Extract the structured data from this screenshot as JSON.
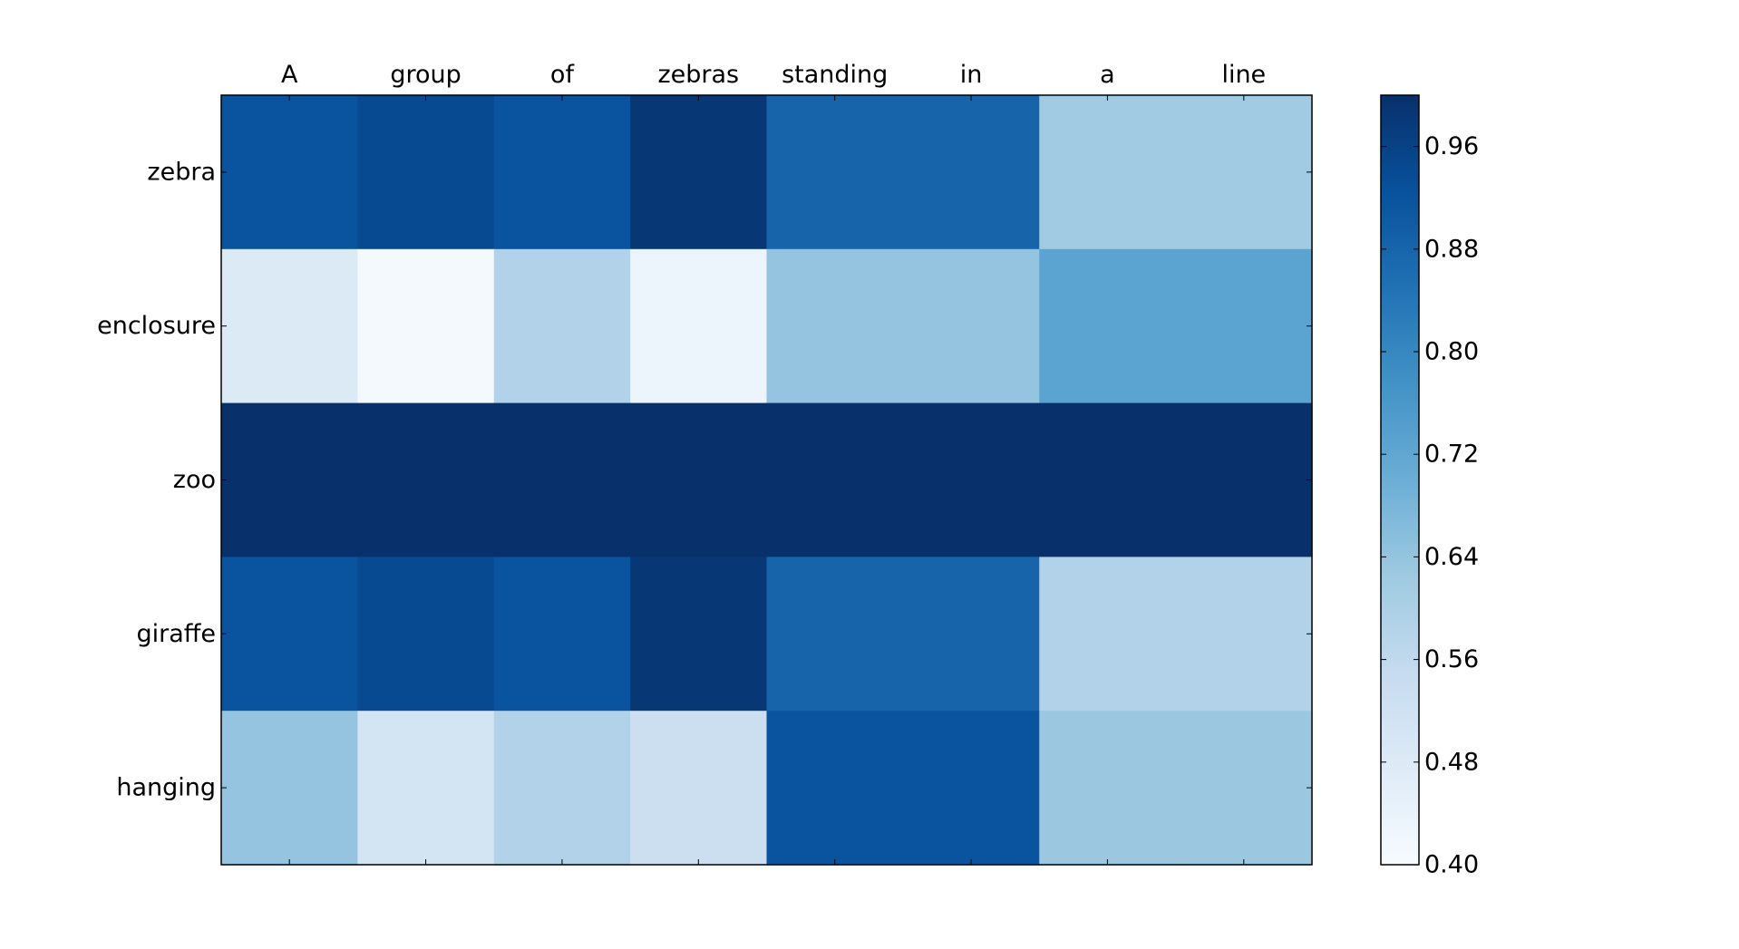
{
  "chart_data": {
    "type": "heatmap",
    "title": "",
    "xlabel": "",
    "ylabel": "",
    "x_labels": [
      "A",
      "group",
      "of",
      "zebras",
      "standing",
      "in",
      "a",
      "line"
    ],
    "y_labels": [
      "zebra",
      "enclosure",
      "zoo",
      "giraffe",
      "hanging"
    ],
    "values": [
      [
        0.92,
        0.94,
        0.92,
        0.985,
        0.88,
        0.88,
        0.62,
        0.62
      ],
      [
        0.48,
        0.41,
        0.59,
        0.43,
        0.64,
        0.64,
        0.73,
        0.73
      ],
      [
        1.0,
        1.0,
        1.0,
        1.0,
        1.0,
        1.0,
        1.0,
        1.0
      ],
      [
        0.92,
        0.94,
        0.92,
        0.985,
        0.88,
        0.88,
        0.59,
        0.59
      ],
      [
        0.64,
        0.51,
        0.59,
        0.53,
        0.92,
        0.92,
        0.63,
        0.63
      ]
    ],
    "colormap": "Blues",
    "color_range": [
      0.4,
      1.0
    ],
    "colorbar": {
      "ticks": [
        "0.40",
        "0.48",
        "0.56",
        "0.64",
        "0.72",
        "0.80",
        "0.88",
        "0.96"
      ],
      "placement": "right"
    },
    "x_tick_position": "top",
    "grid": false
  }
}
